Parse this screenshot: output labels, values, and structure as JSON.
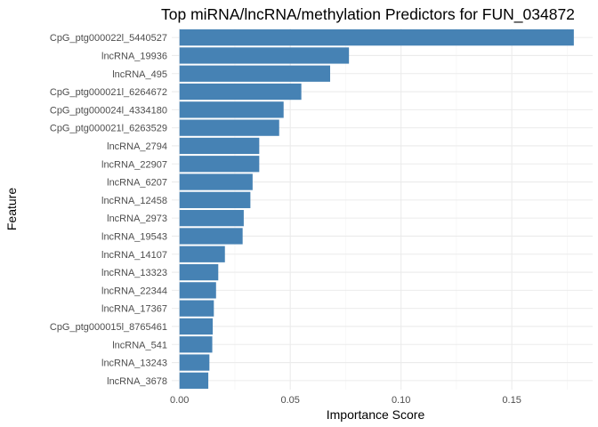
{
  "chart_data": {
    "type": "bar",
    "orientation": "horizontal",
    "title": "Top miRNA/lncRNA/methylation Predictors for FUN_034872",
    "xlabel": "Importance Score",
    "ylabel": "Feature",
    "xlim": [
      -0.0035,
      0.1865
    ],
    "xticks": [
      0.0,
      0.05,
      0.1,
      0.15
    ],
    "xtick_labels": [
      "0.00",
      "0.05",
      "0.10",
      "0.15"
    ],
    "grid": true,
    "bar_color": "#4682B4",
    "categories": [
      "CpG_ptg000022l_5440527",
      "lncRNA_19936",
      "lncRNA_495",
      "CpG_ptg000021l_6264672",
      "CpG_ptg000024l_4334180",
      "CpG_ptg000021l_6263529",
      "lncRNA_2794",
      "lncRNA_22907",
      "lncRNA_6207",
      "lncRNA_12458",
      "lncRNA_2973",
      "lncRNA_19543",
      "lncRNA_14107",
      "lncRNA_13323",
      "lncRNA_22344",
      "lncRNA_17367",
      "CpG_ptg000015l_8765461",
      "lncRNA_541",
      "lncRNA_13243",
      "lncRNA_3678"
    ],
    "values": [
      0.178,
      0.0765,
      0.068,
      0.055,
      0.047,
      0.045,
      0.036,
      0.036,
      0.033,
      0.032,
      0.029,
      0.0285,
      0.0205,
      0.0175,
      0.0165,
      0.0155,
      0.015,
      0.0148,
      0.0135,
      0.013
    ]
  }
}
